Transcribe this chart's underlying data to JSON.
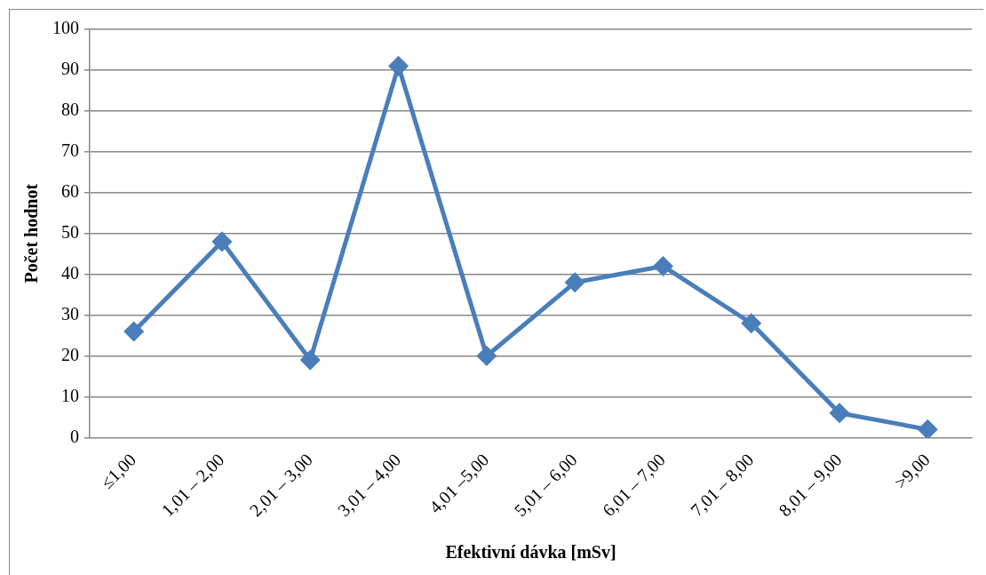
{
  "chart_data": {
    "type": "line",
    "xlabel": "Efektivní dávka [mSv]",
    "ylabel": "Počet hodnot",
    "categories": [
      "≤1,00",
      "1,01 – 2,00",
      "2,01 – 3,00",
      "3,01 – 4,00",
      "4,01 –5,00",
      "5,01 – 6,00",
      "6,01 – 7,00",
      "7,01 – 8,00",
      "8,01 – 9,00",
      ">9,00"
    ],
    "series": [
      {
        "color": "#4a7ebb",
        "values": [
          26,
          48,
          19,
          91,
          20,
          38,
          42,
          28,
          6,
          2
        ]
      }
    ],
    "ylim": [
      0,
      100
    ],
    "yticks": [
      0,
      10,
      20,
      30,
      40,
      50,
      60,
      70,
      80,
      90,
      100
    ],
    "grid": "y",
    "legend": false,
    "marker": "diamond",
    "line_style": "solid"
  }
}
